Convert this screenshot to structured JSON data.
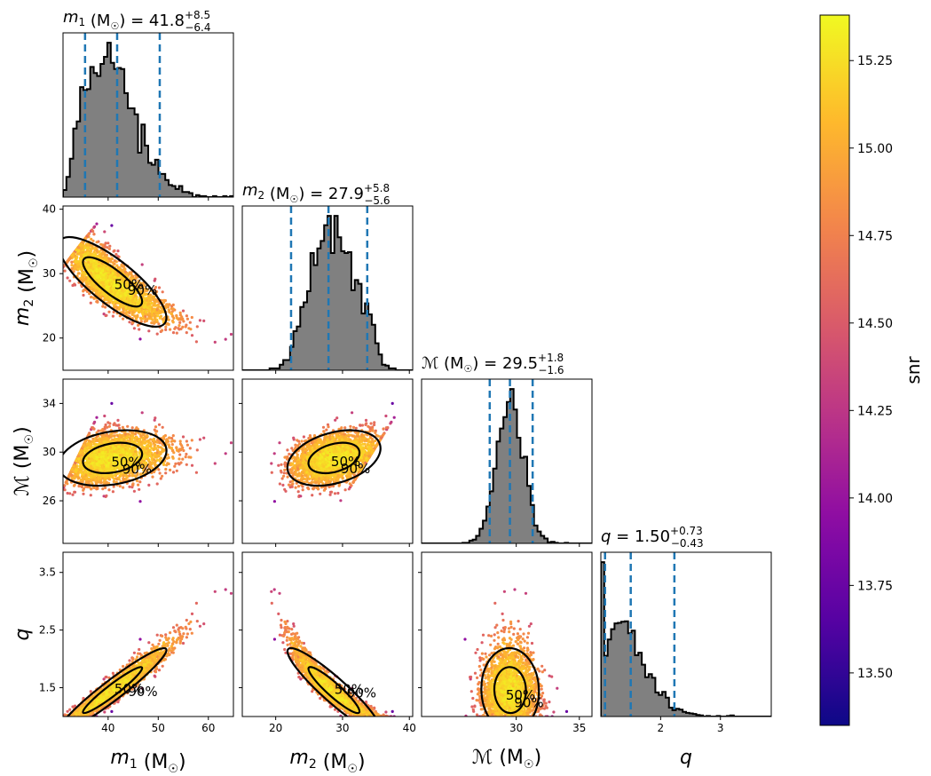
{
  "chart_data": {
    "type": "corner",
    "parameters": [
      {
        "key": "m1",
        "label": "m",
        "sub": "1",
        "unit": " (M",
        "sunsym": "☉",
        "unit_close": ")",
        "range": [
          31,
          65
        ],
        "ticks": [
          40,
          50,
          60
        ],
        "median": 41.8,
        "plus": "+8.5",
        "minus": "−6.4",
        "lo90": 35.4,
        "hi90": 50.3,
        "value_text": "41.8",
        "hist_shape": [
          38,
          2.2
        ]
      },
      {
        "key": "m2",
        "label": "m",
        "sub": "2",
        "unit": " (M",
        "sunsym": "☉",
        "unit_close": ")",
        "range": [
          15,
          40.5
        ],
        "ticks": [
          20,
          30,
          40
        ],
        "median": 27.9,
        "plus": "+5.8",
        "minus": "−5.6",
        "lo90": 22.3,
        "hi90": 33.7,
        "value_text": "27.9",
        "hist_shape": [
          28.1,
          3.4
        ]
      },
      {
        "key": "mc",
        "label": "ℳ",
        "sub": "",
        "unit": " (M",
        "sunsym": "☉",
        "unit_close": ")",
        "range": [
          22.5,
          36
        ],
        "ticks": [
          26,
          30,
          34
        ],
        "median": 29.5,
        "plus": "+1.8",
        "minus": "−1.6",
        "lo90": 27.9,
        "hi90": 31.3,
        "value_text": "29.5",
        "hist_shape": [
          29.5,
          1.05
        ]
      },
      {
        "key": "q",
        "label": "q",
        "sub": "",
        "unit": "",
        "sunsym": "",
        "unit_close": "",
        "range": [
          1.0,
          3.85
        ],
        "ticks": [
          1.5,
          2.5,
          3.5
        ],
        "median": 1.5,
        "plus": "+0.73",
        "minus": "−0.43",
        "lo90": 1.07,
        "hi90": 2.23,
        "value_text": "1.50",
        "hist_shape": [
          1.35,
          0.36
        ]
      }
    ],
    "axis_ticks": {
      "m1": [
        "40",
        "50",
        "60"
      ],
      "m2_x": [
        "20",
        "30",
        "40"
      ],
      "m2_y": [
        "20",
        "30",
        "40"
      ],
      "mc_x": [
        "30",
        "35"
      ],
      "mc_y": [
        "26",
        "30",
        "34"
      ],
      "q_x": [
        "2",
        "3"
      ],
      "q_y": [
        "1.5",
        "2.5",
        "3.5"
      ]
    },
    "contour_labels": [
      "50%",
      "90%"
    ],
    "colorbar": {
      "label": "snr",
      "range": [
        13.35,
        15.38
      ],
      "ticks": [
        "13.50",
        "13.75",
        "14.00",
        "14.25",
        "14.50",
        "14.75",
        "15.00",
        "15.25"
      ],
      "tick_values": [
        13.5,
        13.75,
        14.0,
        14.25,
        14.5,
        14.75,
        15.0,
        15.25
      ],
      "colormap": "plasma"
    },
    "hist_color": "#808080",
    "quantile_line_color": "#1f77b4",
    "contour_color": "#000000"
  }
}
